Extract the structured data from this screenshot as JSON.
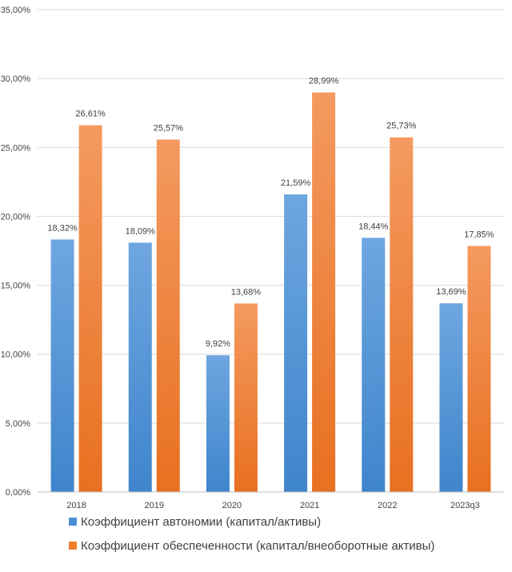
{
  "chart_data": {
    "type": "bar",
    "title": "",
    "xlabel": "",
    "ylabel": "",
    "categories": [
      "2018",
      "2019",
      "2020",
      "2021",
      "2022",
      "2023q3"
    ],
    "y_ticks": [
      "0,00%",
      "5,00%",
      "10,00%",
      "15,00%",
      "20,00%",
      "25,00%",
      "30,00%",
      "35,00%"
    ],
    "ylim": [
      0,
      35
    ],
    "grid": true,
    "legend_position": "bottom-left",
    "series": [
      {
        "name": "Коэффициент автономии (капитал/активы)",
        "color": "#4a8fd4",
        "values": [
          18.32,
          18.09,
          9.92,
          21.59,
          18.44,
          13.69
        ],
        "labels": [
          "18,32%",
          "18,09%",
          "9,92%",
          "21,59%",
          "18,44%",
          "13,69%"
        ]
      },
      {
        "name": "Коэффициент обеспеченности (капитал/внеоборотные активы)",
        "color": "#f07f2c",
        "values": [
          26.61,
          25.57,
          13.68,
          28.99,
          25.73,
          17.85
        ],
        "labels": [
          "26,61%",
          "25,57%",
          "13,68%",
          "28,99%",
          "25,73%",
          "17,85%"
        ]
      }
    ]
  }
}
